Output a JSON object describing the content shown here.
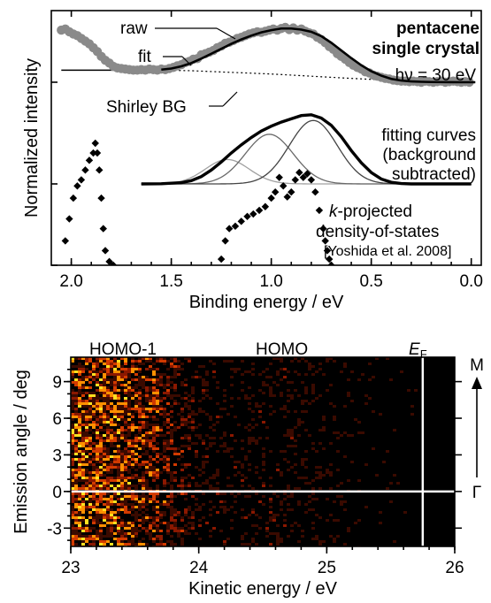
{
  "chart_data": [
    {
      "type": "scatter",
      "xlabel": "Binding energy / eV",
      "ylabel": "Normalized intensity",
      "xlim": [
        2.1,
        -0.05
      ],
      "x_reversed": true,
      "x_ticks": [
        "2.0",
        "1.5",
        "1.0",
        "0.5",
        "0.0"
      ],
      "x_tick_values": [
        2.0,
        1.5,
        1.0,
        0.5,
        0.0
      ],
      "annotations": {
        "sample_line1": "pentacene",
        "sample_line2": "single crystal",
        "photon_energy": "hν = 30 eV",
        "raw": "raw",
        "fit": "fit",
        "shirley": "Shirley BG",
        "fitting1": "fitting curves",
        "fitting2": "(background",
        "fitting3": "subtracted)",
        "kdos_k": "k",
        "kdos1": "-projected",
        "kdos2": "density-of-states",
        "reference": "[Yoshida et al. 2008]"
      },
      "series": [
        {
          "name": "raw",
          "style": "markers",
          "color": "#8a8a8a",
          "x": [
            2.05,
            2.03,
            2.01,
            1.99,
            1.97,
            1.95,
            1.93,
            1.91,
            1.89,
            1.87,
            1.85,
            1.83,
            1.81,
            1.79,
            1.77,
            1.75,
            1.73,
            1.71,
            1.69,
            1.67,
            1.65,
            1.63,
            1.61,
            1.59,
            1.57,
            1.55,
            1.53,
            1.51,
            1.49,
            1.47,
            1.45,
            1.43,
            1.41,
            1.39,
            1.37,
            1.35,
            1.33,
            1.31,
            1.29,
            1.27,
            1.25,
            1.23,
            1.21,
            1.19,
            1.17,
            1.15,
            1.13,
            1.11,
            1.09,
            1.07,
            1.05,
            1.03,
            1.01,
            0.99,
            0.97,
            0.95,
            0.93,
            0.91,
            0.89,
            0.87,
            0.85,
            0.83,
            0.81,
            0.79,
            0.77,
            0.75,
            0.73,
            0.71,
            0.69,
            0.67,
            0.65,
            0.63,
            0.61,
            0.59,
            0.57,
            0.55,
            0.53,
            0.51,
            0.49,
            0.47,
            0.45,
            0.43,
            0.41,
            0.39,
            0.37,
            0.35,
            0.33,
            0.31,
            0.29,
            0.27,
            0.25,
            0.23,
            0.21,
            0.19,
            0.17,
            0.15,
            0.13,
            0.11,
            0.09,
            0.07,
            0.05,
            0.03,
            0.01
          ],
          "y": [
            0.95,
            0.97,
            0.92,
            0.88,
            0.85,
            0.8,
            0.75,
            0.7,
            0.63,
            0.56,
            0.47,
            0.4,
            0.35,
            0.29,
            0.26,
            0.25,
            0.24,
            0.23,
            0.22,
            0.22,
            0.23,
            0.22,
            0.24,
            0.23,
            0.22,
            0.24,
            0.23,
            0.25,
            0.27,
            0.3,
            0.32,
            0.36,
            0.38,
            0.42,
            0.43,
            0.5,
            0.52,
            0.55,
            0.58,
            0.63,
            0.66,
            0.71,
            0.73,
            0.76,
            0.8,
            0.82,
            0.85,
            0.88,
            0.9,
            0.92,
            0.91,
            0.93,
            0.95,
            0.97,
            0.95,
            0.98,
            1.0,
            0.96,
            0.99,
            0.95,
            0.97,
            0.93,
            0.9,
            0.88,
            0.82,
            0.78,
            0.72,
            0.65,
            0.6,
            0.52,
            0.47,
            0.42,
            0.36,
            0.31,
            0.27,
            0.24,
            0.19,
            0.17,
            0.13,
            0.11,
            0.09,
            0.07,
            0.06,
            0.04,
            0.03,
            0.02,
            0.02,
            0.01,
            0.02,
            0.01,
            0.0,
            0.02,
            0.01,
            0.0,
            0.01,
            0.02,
            0.0,
            0.01,
            0.02,
            0.01,
            0.0,
            0.01,
            0.0
          ]
        },
        {
          "name": "fit",
          "style": "line",
          "color": "#000000",
          "x": [
            1.55,
            1.5,
            1.45,
            1.4,
            1.35,
            1.3,
            1.25,
            1.2,
            1.15,
            1.1,
            1.05,
            1.0,
            0.95,
            0.9,
            0.85,
            0.8,
            0.75,
            0.7,
            0.65,
            0.6,
            0.55,
            0.5,
            0.45,
            0.4,
            0.35,
            0.3,
            0.25,
            0.2,
            0.15,
            0.1,
            0.05,
            -0.02
          ],
          "y": [
            0.23,
            0.25,
            0.29,
            0.35,
            0.43,
            0.52,
            0.61,
            0.7,
            0.78,
            0.85,
            0.91,
            0.95,
            0.98,
            0.98,
            0.96,
            0.92,
            0.84,
            0.72,
            0.58,
            0.44,
            0.31,
            0.2,
            0.12,
            0.06,
            0.03,
            0.015,
            0.008,
            0.004,
            0.002,
            0.001,
            0.0,
            0.0
          ]
        },
        {
          "name": "baseline",
          "style": "line",
          "color": "#000000",
          "x": [
            2.05,
            1.6,
            1.55
          ],
          "y": [
            0.22,
            0.22,
            0.23
          ]
        },
        {
          "name": "Shirley BG",
          "style": "dotted",
          "color": "#000000",
          "x": [
            1.55,
            1.4,
            1.2,
            1.0,
            0.8,
            0.6,
            0.4,
            0.2,
            -0.02
          ],
          "y": [
            0.22,
            0.21,
            0.18,
            0.15,
            0.11,
            0.07,
            0.035,
            0.01,
            0.0
          ]
        },
        {
          "name": "fitting curves",
          "style": "thick-line",
          "color": "#000000",
          "x": [
            1.65,
            1.55,
            1.45,
            1.4,
            1.35,
            1.3,
            1.25,
            1.2,
            1.15,
            1.1,
            1.05,
            1.0,
            0.95,
            0.9,
            0.85,
            0.8,
            0.75,
            0.7,
            0.65,
            0.6,
            0.55,
            0.5,
            0.45,
            0.4,
            0.35,
            0.3,
            0.2,
            0.1,
            0.0
          ],
          "y": [
            0.0,
            0.002,
            0.015,
            0.04,
            0.09,
            0.17,
            0.27,
            0.38,
            0.48,
            0.57,
            0.65,
            0.71,
            0.76,
            0.8,
            0.84,
            0.85,
            0.81,
            0.72,
            0.58,
            0.41,
            0.26,
            0.14,
            0.06,
            0.02,
            0.005,
            0.0,
            0.0,
            0.0,
            0.0
          ]
        },
        {
          "name": "component-1",
          "style": "thin-line",
          "color": "#a0a0a0",
          "center": 1.22,
          "sigma": 0.11,
          "amp": 0.3,
          "xlim": [
            1.65,
            0.0
          ]
        },
        {
          "name": "component-2",
          "style": "thin-line",
          "color": "#6a6a6a",
          "center": 1.01,
          "sigma": 0.12,
          "amp": 0.61,
          "xlim": [
            1.65,
            0.0
          ]
        },
        {
          "name": "component-3",
          "style": "thin-line",
          "color": "#444444",
          "center": 0.79,
          "sigma": 0.12,
          "amp": 0.78,
          "xlim": [
            1.65,
            0.0
          ]
        },
        {
          "name": "k-projected density-of-states",
          "style": "diamonds",
          "color": "#000000",
          "x": [
            2.03,
            2.01,
            1.99,
            1.97,
            1.95,
            1.93,
            1.91,
            1.89,
            1.88,
            1.87,
            1.86,
            1.85,
            1.84,
            1.83,
            1.81,
            1.79,
            1.25,
            1.23,
            1.21,
            1.18,
            1.15,
            1.12,
            1.09,
            1.06,
            1.03,
            1.0,
            0.98,
            0.96,
            0.94,
            0.92,
            0.9,
            0.88,
            0.86,
            0.84,
            0.82,
            0.8,
            0.78,
            0.76,
            0.74,
            0.73,
            0.72,
            0.71,
            0.7
          ],
          "y": [
            0.2,
            0.38,
            0.55,
            0.65,
            0.7,
            0.78,
            0.86,
            0.92,
            1.0,
            0.92,
            0.78,
            0.55,
            0.3,
            0.12,
            0.03,
            0.0,
            0.05,
            0.2,
            0.3,
            0.32,
            0.36,
            0.4,
            0.42,
            0.45,
            0.48,
            0.55,
            0.6,
            0.72,
            0.65,
            0.56,
            0.6,
            0.7,
            0.76,
            0.72,
            0.75,
            0.7,
            0.6,
            0.45,
            0.3,
            0.2,
            0.12,
            0.05,
            0.0
          ]
        }
      ]
    },
    {
      "type": "heatmap",
      "xlabel": "Kinetic energy / eV",
      "ylabel": "Emission angle / deg",
      "xlim": [
        23.0,
        26.0
      ],
      "ylim": [
        -4.5,
        11.0
      ],
      "x_ticks": [
        "23",
        "24",
        "25",
        "26"
      ],
      "x_tick_values": [
        23,
        24,
        25,
        26
      ],
      "y_ticks": [
        "-3",
        "0",
        "3",
        "6",
        "9"
      ],
      "y_tick_values": [
        -3,
        0,
        3,
        6,
        9
      ],
      "colors": [
        "#000000",
        "#3a0a00",
        "#8b1800",
        "#d23a00",
        "#ff9000",
        "#ffe020"
      ],
      "annotations": {
        "homo1": "HOMO-1",
        "homo": "HOMO",
        "ef_main": "E",
        "ef_sub": "F",
        "direction_top": "M",
        "direction_bottom": "Γ"
      },
      "fermi_level": 25.75,
      "gamma_angle": 0,
      "intensity_profile": {
        "x": [
          23.0,
          23.4,
          23.7,
          23.85,
          24.0,
          24.2,
          24.5,
          24.8,
          25.0,
          25.1,
          25.3,
          25.6,
          25.75,
          26.0
        ],
        "values": [
          0.75,
          0.72,
          0.55,
          0.38,
          0.22,
          0.18,
          0.2,
          0.17,
          0.14,
          0.08,
          0.05,
          0.03,
          0.0,
          0.0
        ]
      }
    }
  ]
}
